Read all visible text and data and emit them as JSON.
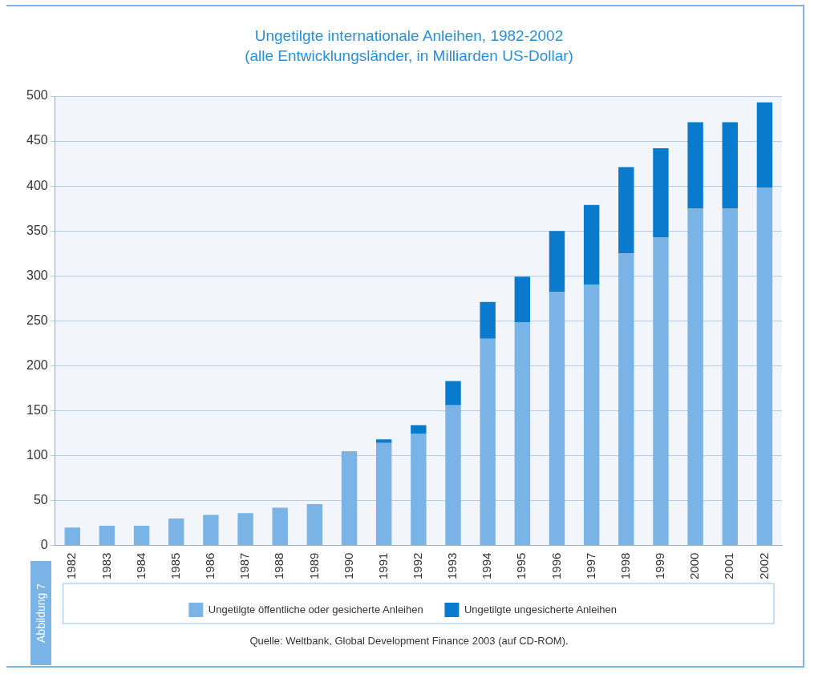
{
  "chart_data": {
    "type": "bar",
    "title": "Ungetilgte internationale Anleihen, 1982-2002",
    "subtitle": "(alle Entwicklungsländer, in Milliarden US-Dollar)",
    "categories": [
      "1982",
      "1983",
      "1984",
      "1985",
      "1986",
      "1987",
      "1988",
      "1989",
      "1990",
      "1991",
      "1992",
      "1993",
      "1994",
      "1995",
      "1996",
      "1997",
      "1998",
      "1999",
      "2000",
      "2001",
      "2002"
    ],
    "series": [
      {
        "name": "Ungetilgte öffentliche oder gesicherte Anleihen",
        "color": "#7ab4e6",
        "values": [
          20,
          22,
          22,
          30,
          34,
          36,
          42,
          46,
          105,
          114,
          124,
          156,
          230,
          248,
          282,
          290,
          325,
          343,
          375,
          375,
          398
        ]
      },
      {
        "name": "Ungetilgte ungesicherte Anleihen",
        "color": "#0a7acc",
        "values": [
          0,
          0,
          0,
          0,
          0,
          0,
          0,
          0,
          0,
          4,
          10,
          27,
          41,
          51,
          68,
          89,
          96,
          99,
          96,
          96,
          95
        ]
      }
    ],
    "stacked": true,
    "ylim": [
      0,
      500
    ],
    "yticks": [
      0,
      50,
      100,
      150,
      200,
      250,
      300,
      350,
      400,
      450,
      500
    ],
    "grid": "y",
    "legend": "bottom",
    "annotations": [
      "Quelle: Weltbank, Global Development Finance 2003 (auf CD-ROM).",
      "Abbildung 7"
    ]
  }
}
